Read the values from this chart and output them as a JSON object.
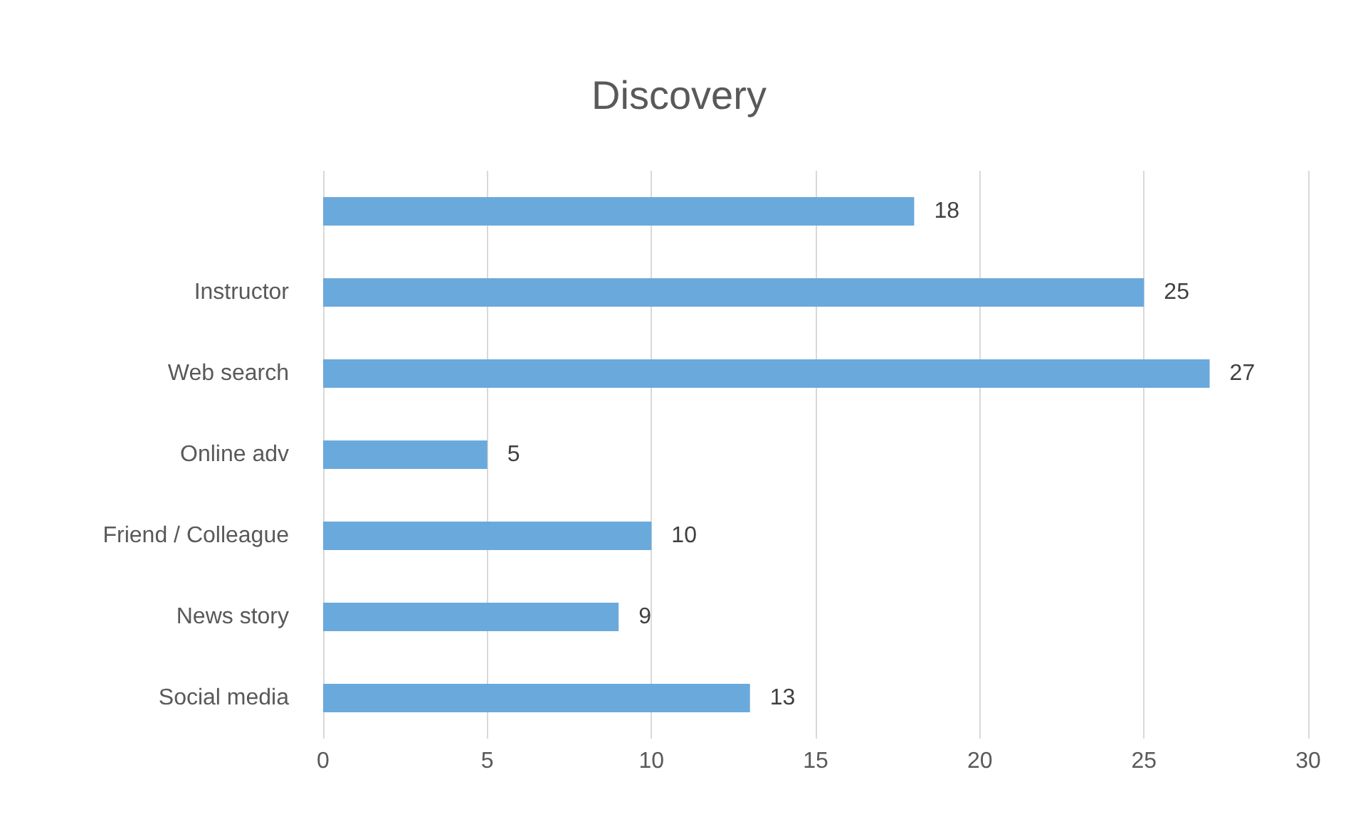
{
  "chart_data": {
    "type": "bar",
    "orientation": "horizontal",
    "title": "Discovery",
    "categories": [
      null,
      "Instructor",
      "Web search",
      "Online adv",
      "Friend / Colleague",
      "News story",
      "Social media"
    ],
    "values": [
      18,
      25,
      27,
      5,
      10,
      9,
      13
    ],
    "color": "#6aa9dc",
    "xlim": [
      0,
      30
    ],
    "xticks": [
      0,
      5,
      10,
      15,
      20,
      25,
      30
    ],
    "grid": "x",
    "data_labels": true
  }
}
